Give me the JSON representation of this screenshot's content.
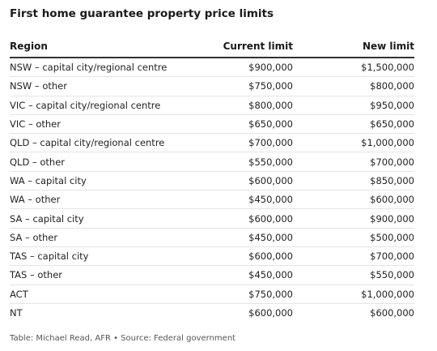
{
  "title": "First home guarantee property price limits",
  "table": {
    "headers": [
      "Region",
      "Current limit",
      "New limit"
    ],
    "rows": [
      [
        "NSW – capital city/regional centre",
        "$900,000",
        "$1,500,000"
      ],
      [
        "NSW – other",
        "$750,000",
        "$800,000"
      ],
      [
        "VIC – capital city/regional centre",
        "$800,000",
        "$950,000"
      ],
      [
        "VIC – other",
        "$650,000",
        "$650,000"
      ],
      [
        "QLD – capital city/regional centre",
        "$700,000",
        "$1,000,000"
      ],
      [
        "QLD – other",
        "$550,000",
        "$700,000"
      ],
      [
        "WA – capital city",
        "$600,000",
        "$850,000"
      ],
      [
        "WA – other",
        "$450,000",
        "$600,000"
      ],
      [
        "SA – capital city",
        "$600,000",
        "$900,000"
      ],
      [
        "SA – other",
        "$450,000",
        "$500,000"
      ],
      [
        "TAS – capital city",
        "$600,000",
        "$700,000"
      ],
      [
        "TAS – other",
        "$450,000",
        "$550,000"
      ],
      [
        "ACT",
        "$750,000",
        "$1,000,000"
      ],
      [
        "NT",
        "$600,000",
        "$600,000"
      ]
    ]
  },
  "footer": "Table: Michael Read, AFR • Source: Federal government"
}
